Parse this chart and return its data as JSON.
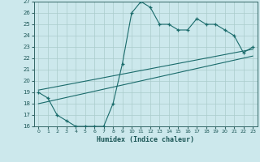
{
  "xlabel": "Humidex (Indice chaleur)",
  "bg_color": "#cce8ec",
  "grid_color": "#aacccc",
  "line_color": "#1a6b6b",
  "xlim": [
    -0.5,
    23.5
  ],
  "ylim": [
    16,
    27
  ],
  "xticks": [
    0,
    1,
    2,
    3,
    4,
    5,
    6,
    7,
    8,
    9,
    10,
    11,
    12,
    13,
    14,
    15,
    16,
    17,
    18,
    19,
    20,
    21,
    22,
    23
  ],
  "yticks": [
    16,
    17,
    18,
    19,
    20,
    21,
    22,
    23,
    24,
    25,
    26,
    27
  ],
  "series1_x": [
    0,
    1,
    2,
    3,
    4,
    5,
    6,
    7,
    8,
    9,
    10,
    11,
    12,
    13,
    14,
    15,
    16,
    17,
    18,
    19,
    20,
    21,
    22,
    23
  ],
  "series1_y": [
    19.0,
    18.5,
    17.0,
    16.5,
    16.0,
    16.0,
    16.0,
    16.0,
    18.0,
    21.5,
    26.0,
    27.0,
    26.5,
    25.0,
    25.0,
    24.5,
    24.5,
    25.5,
    25.0,
    25.0,
    24.5,
    24.0,
    22.5,
    23.0
  ],
  "series2_x": [
    0,
    23
  ],
  "series2_y": [
    19.2,
    22.8
  ],
  "series3_x": [
    0,
    23
  ],
  "series3_y": [
    18.0,
    22.2
  ],
  "marker": "+"
}
